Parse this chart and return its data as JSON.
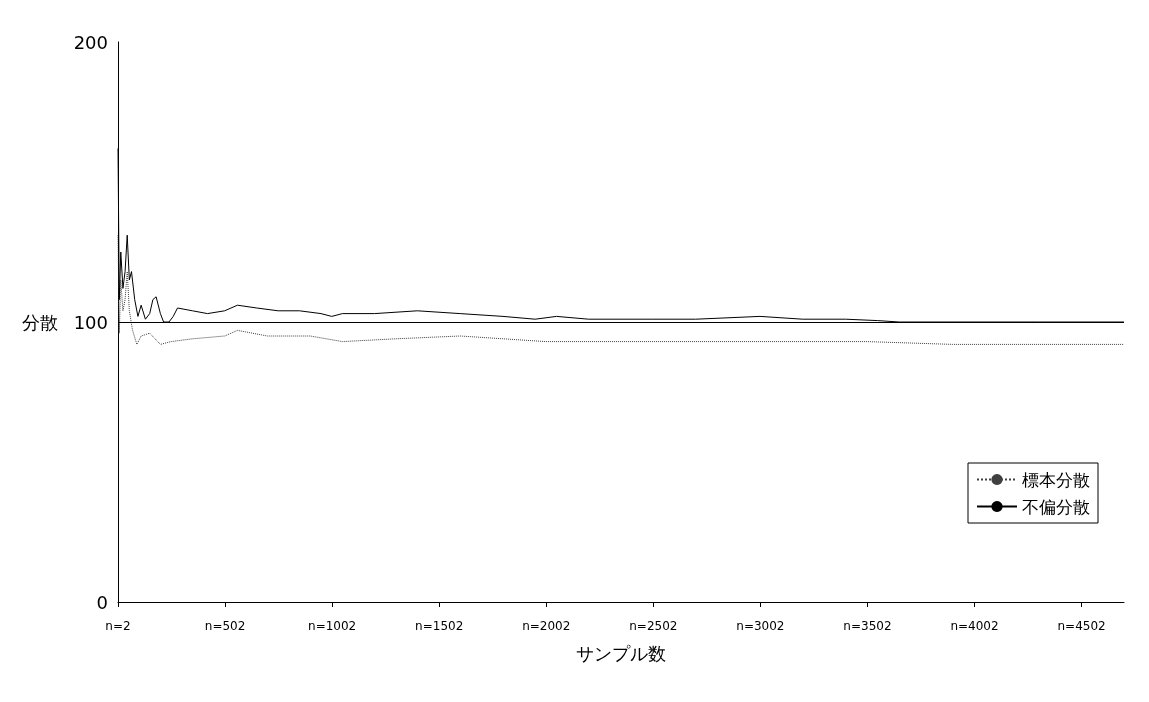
{
  "chart_data": {
    "type": "line",
    "xlabel": "サンプル数",
    "ylabel": "分散",
    "xlim": [
      2,
      4700
    ],
    "xticks": [
      {
        "value": 2,
        "label": "n=2"
      },
      {
        "value": 502,
        "label": "n=502"
      },
      {
        "value": 1002,
        "label": "n=1002"
      },
      {
        "value": 1502,
        "label": "n=1502"
      },
      {
        "value": 2002,
        "label": "n=2002"
      },
      {
        "value": 2502,
        "label": "n=2502"
      },
      {
        "value": 3002,
        "label": "n=3002"
      },
      {
        "value": 3502,
        "label": "n=3502"
      },
      {
        "value": 4002,
        "label": "n=4002"
      },
      {
        "value": 4502,
        "label": "n=4502"
      }
    ],
    "ylim": [
      0,
      200
    ],
    "yticks": [
      0,
      100,
      200
    ],
    "grid": false,
    "legend": "right",
    "marker": "none",
    "ref_lines": [
      {
        "axis": "y",
        "value": 100,
        "color": "#000000",
        "line_style": "solid"
      }
    ],
    "series": [
      {
        "name": "標本分散",
        "color": "#404040",
        "line_style": "dotted",
        "x": [
          2,
          8,
          15,
          25,
          35,
          45,
          55,
          70,
          90,
          110,
          150,
          200,
          250,
          350,
          500,
          560,
          700,
          900,
          1050,
          1300,
          1600,
          2000,
          2500,
          3000,
          3500,
          3900,
          4200,
          4700
        ],
        "values": [
          131,
          96,
          115,
          104,
          108,
          118,
          104,
          97,
          92,
          95,
          96,
          92,
          93,
          94,
          95,
          97,
          95,
          95,
          93,
          94,
          95,
          93,
          93,
          93,
          93,
          92,
          92,
          92
        ]
      },
      {
        "name": "不偏分散",
        "color": "#000000",
        "line_style": "solid",
        "x": [
          2,
          8,
          15,
          25,
          35,
          45,
          55,
          65,
          80,
          95,
          110,
          130,
          150,
          165,
          180,
          200,
          215,
          240,
          260,
          280,
          350,
          420,
          500,
          560,
          650,
          750,
          850,
          950,
          1000,
          1050,
          1200,
          1400,
          1600,
          1800,
          1950,
          2050,
          2200,
          2500,
          2700,
          3000,
          3200,
          3400,
          3550,
          3650,
          4000,
          4300,
          4700
        ],
        "values": [
          162,
          108,
          125,
          112,
          118,
          131,
          115,
          118,
          108,
          102,
          106,
          101,
          103,
          108,
          109,
          103,
          100,
          100,
          102,
          105,
          104,
          103,
          104,
          106,
          105,
          104,
          104,
          103,
          102,
          103,
          103,
          104,
          103,
          102,
          101,
          102,
          101,
          101,
          101,
          102,
          101,
          101,
          100.5,
          100,
          100,
          100,
          100
        ]
      }
    ]
  }
}
